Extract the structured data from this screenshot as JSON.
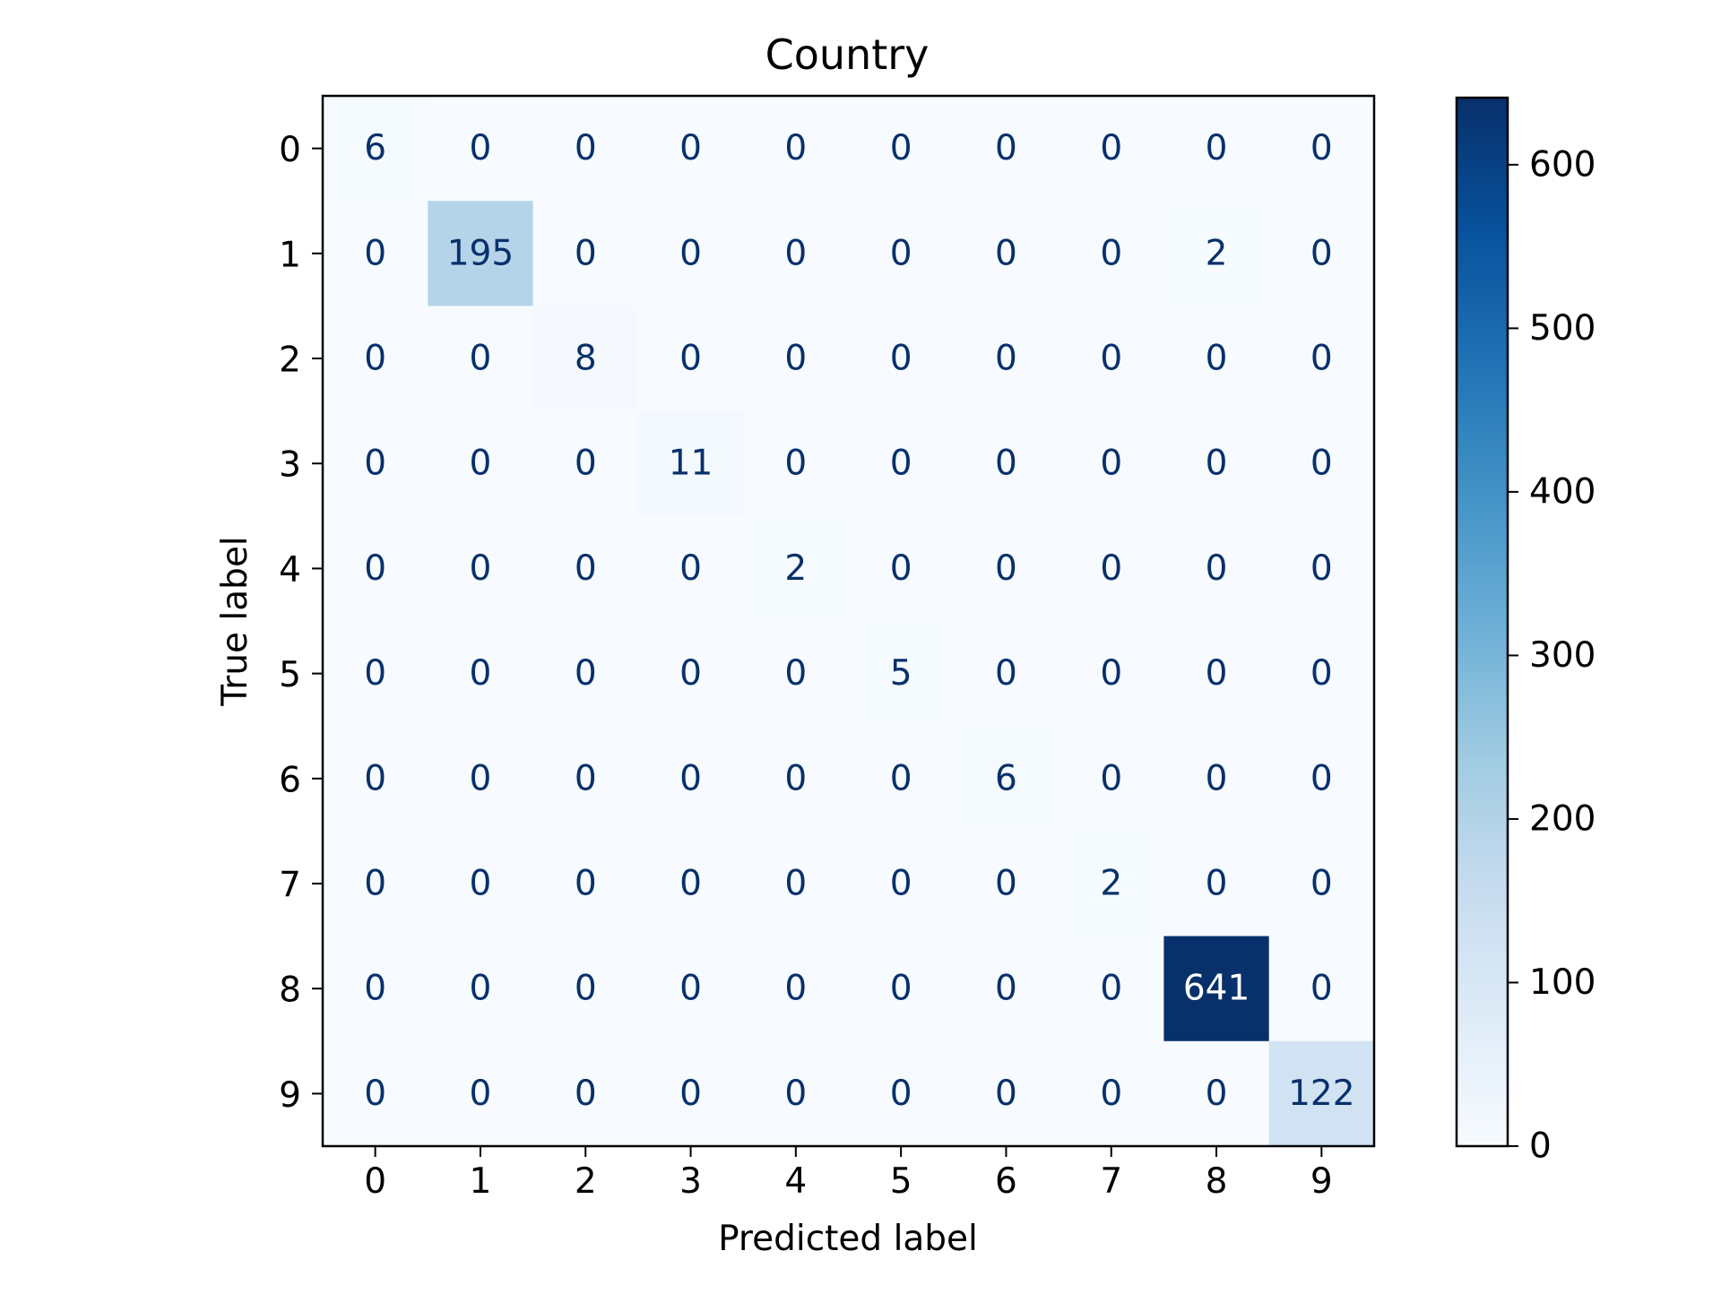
{
  "chart_data": {
    "type": "heatmap",
    "title": "Country",
    "xlabel": "Predicted label",
    "ylabel": "True label",
    "x_categories": [
      "0",
      "1",
      "2",
      "3",
      "4",
      "5",
      "6",
      "7",
      "8",
      "9"
    ],
    "y_categories": [
      "0",
      "1",
      "2",
      "3",
      "4",
      "5",
      "6",
      "7",
      "8",
      "9"
    ],
    "matrix": [
      [
        6,
        0,
        0,
        0,
        0,
        0,
        0,
        0,
        0,
        0
      ],
      [
        0,
        195,
        0,
        0,
        0,
        0,
        0,
        0,
        2,
        0
      ],
      [
        0,
        0,
        8,
        0,
        0,
        0,
        0,
        0,
        0,
        0
      ],
      [
        0,
        0,
        0,
        11,
        0,
        0,
        0,
        0,
        0,
        0
      ],
      [
        0,
        0,
        0,
        0,
        2,
        0,
        0,
        0,
        0,
        0
      ],
      [
        0,
        0,
        0,
        0,
        0,
        5,
        0,
        0,
        0,
        0
      ],
      [
        0,
        0,
        0,
        0,
        0,
        0,
        6,
        0,
        0,
        0
      ],
      [
        0,
        0,
        0,
        0,
        0,
        0,
        0,
        2,
        0,
        0
      ],
      [
        0,
        0,
        0,
        0,
        0,
        0,
        0,
        0,
        641,
        0
      ],
      [
        0,
        0,
        0,
        0,
        0,
        0,
        0,
        0,
        0,
        122
      ]
    ],
    "colorbar": {
      "colormap": "Blues",
      "range": [
        0,
        641
      ],
      "ticks": [
        0,
        100,
        200,
        300,
        400,
        500,
        600
      ]
    },
    "grid": false
  }
}
